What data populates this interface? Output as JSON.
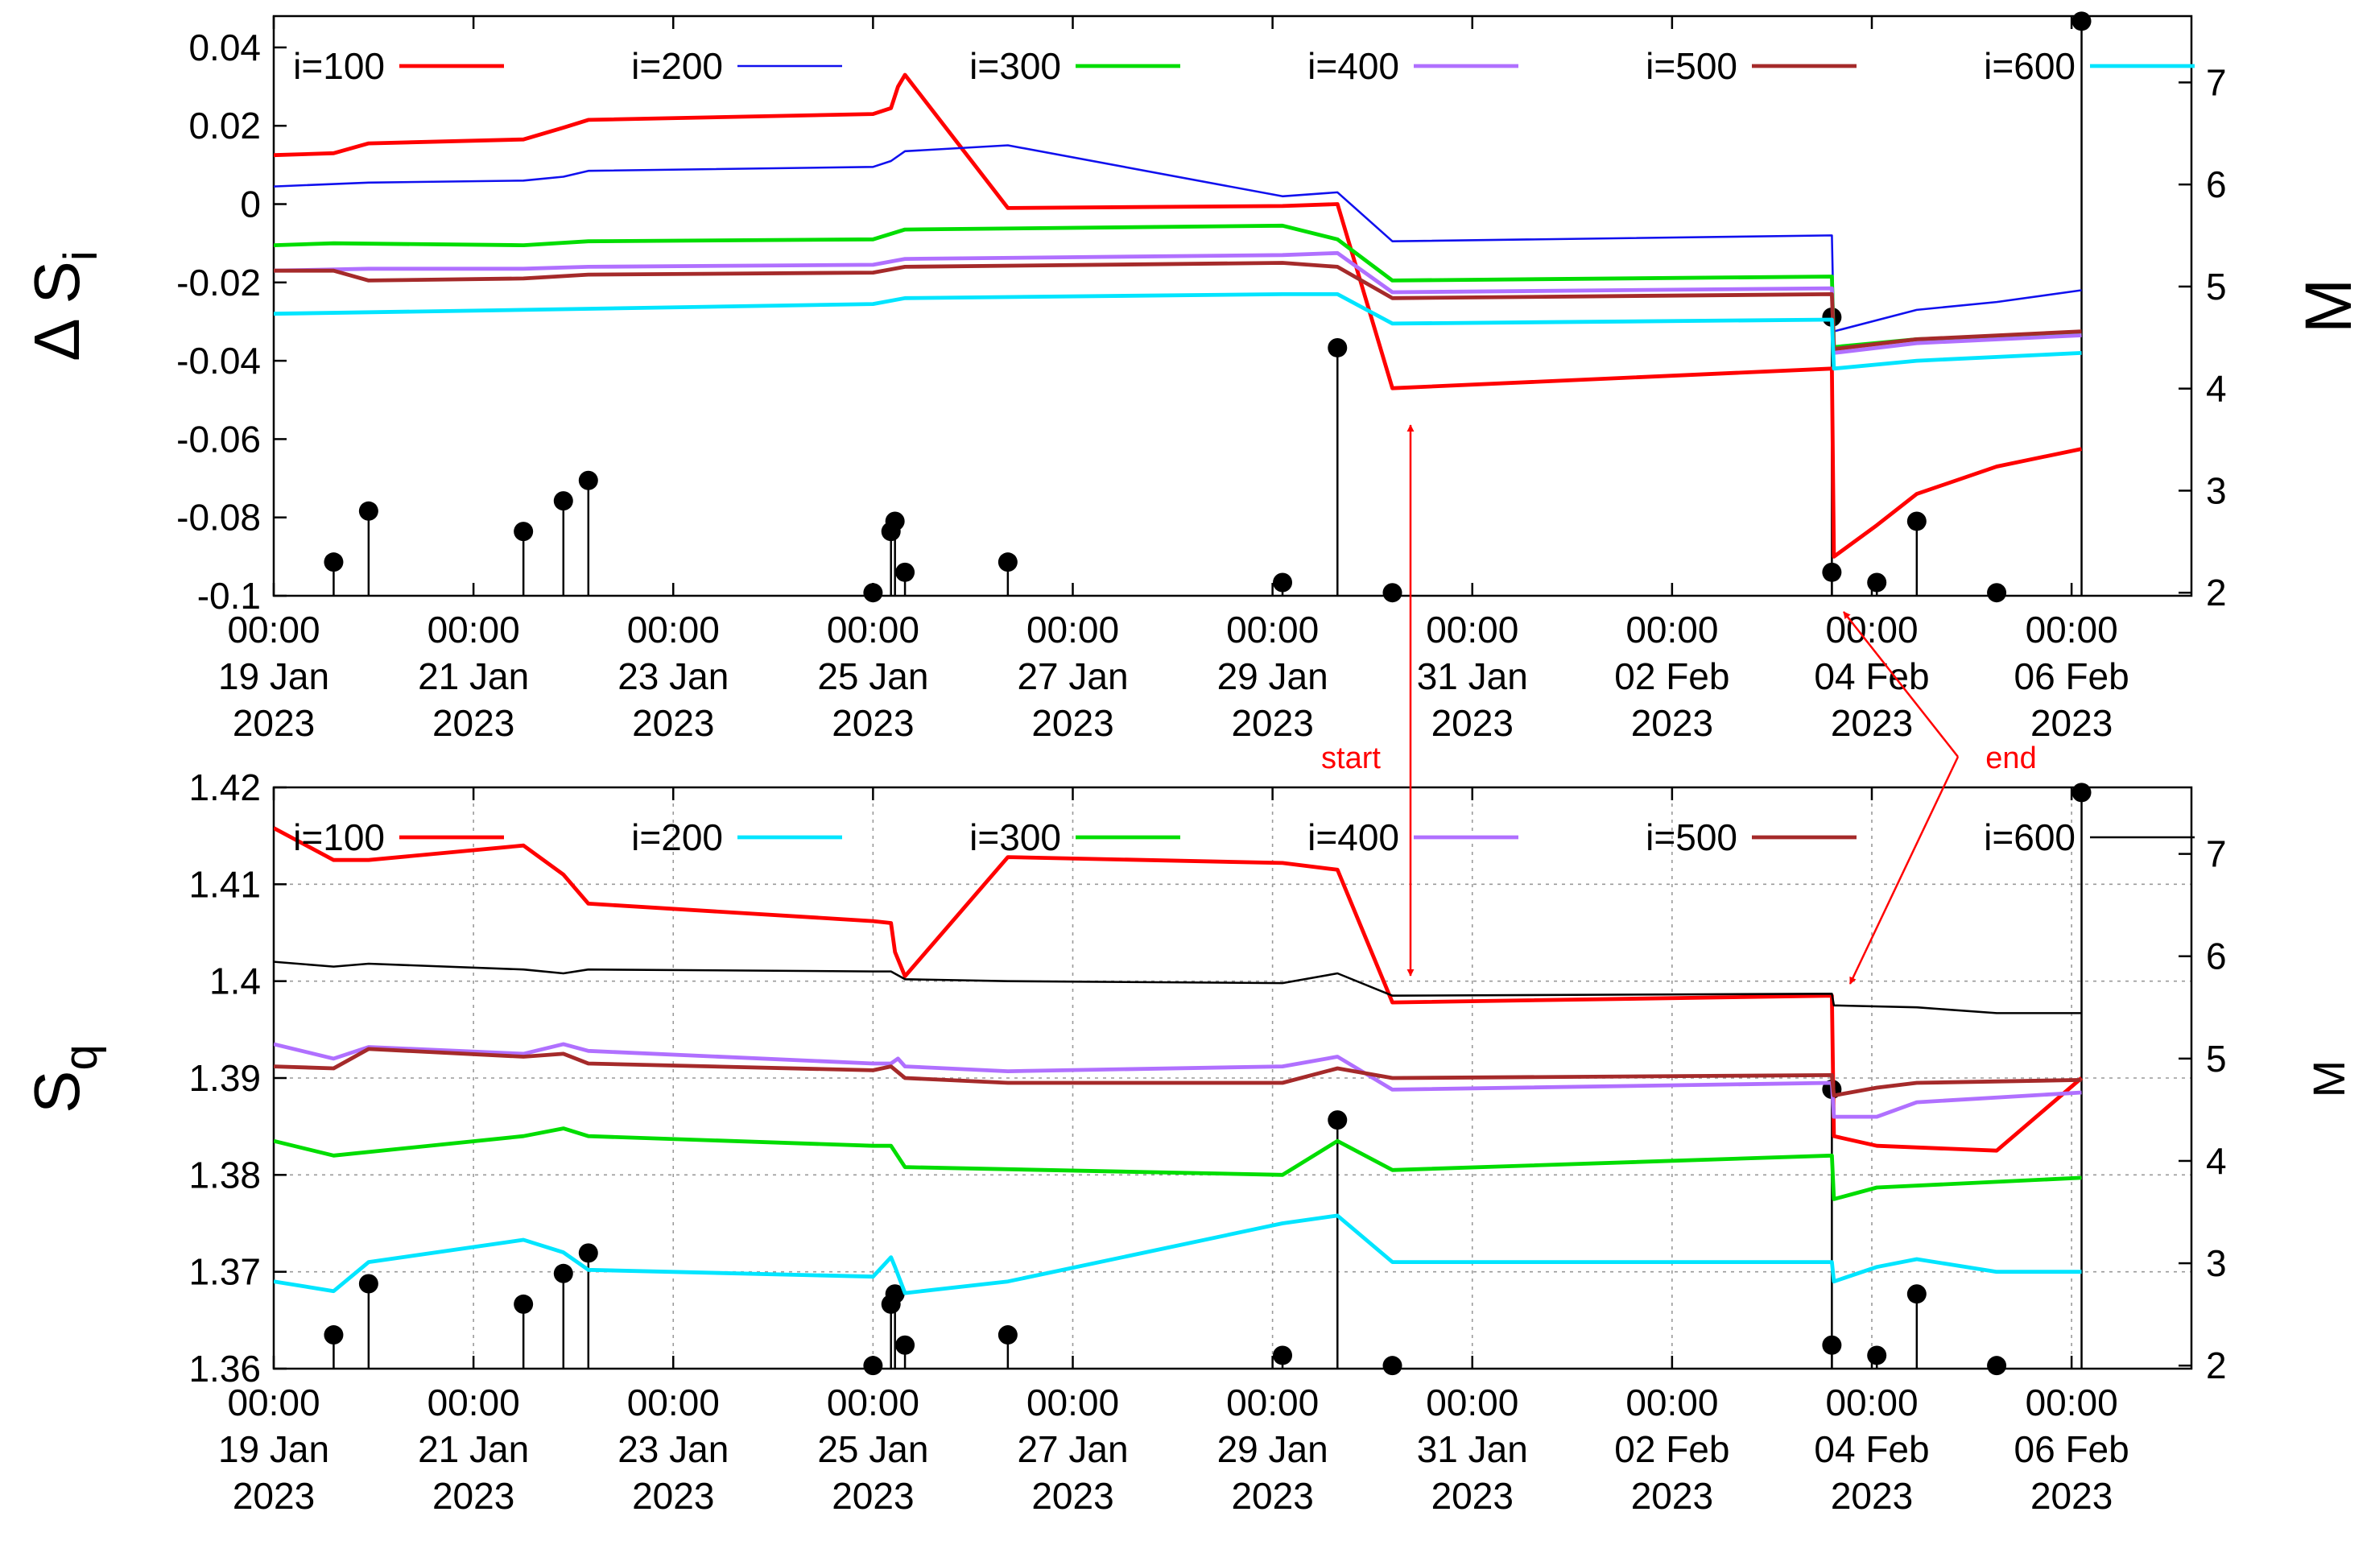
{
  "colors": {
    "red": "#ff0000",
    "blue": "#1010ee",
    "green": "#00dd00",
    "purple": "#b070ff",
    "brown": "#a52a2a",
    "cyan": "#00e5ff",
    "black": "#000000",
    "annotation": "#ff0000"
  },
  "x_ticks": [
    {
      "day": 0,
      "lines": [
        "00:00",
        "19 Jan",
        "2023"
      ]
    },
    {
      "day": 2,
      "lines": [
        "00:00",
        "21 Jan",
        "2023"
      ]
    },
    {
      "day": 4,
      "lines": [
        "00:00",
        "23 Jan",
        "2023"
      ]
    },
    {
      "day": 6,
      "lines": [
        "00:00",
        "25 Jan",
        "2023"
      ]
    },
    {
      "day": 8,
      "lines": [
        "00:00",
        "27 Jan",
        "2023"
      ]
    },
    {
      "day": 10,
      "lines": [
        "00:00",
        "29 Jan",
        "2023"
      ]
    },
    {
      "day": 12,
      "lines": [
        "00:00",
        "31 Jan",
        "2023"
      ]
    },
    {
      "day": 14,
      "lines": [
        "00:00",
        "02 Feb",
        "2023"
      ]
    },
    {
      "day": 16,
      "lines": [
        "00:00",
        "04 Feb",
        "2023"
      ]
    },
    {
      "day": 18,
      "lines": [
        "00:00",
        "06 Feb",
        "2023"
      ]
    }
  ],
  "events": [
    {
      "day": 0.6,
      "M": 2.3
    },
    {
      "day": 0.95,
      "M": 2.8
    },
    {
      "day": 2.5,
      "M": 2.6
    },
    {
      "day": 2.9,
      "M": 2.9
    },
    {
      "day": 3.15,
      "M": 3.1
    },
    {
      "day": 6.0,
      "M": 2.0
    },
    {
      "day": 6.18,
      "M": 2.6
    },
    {
      "day": 6.22,
      "M": 2.7
    },
    {
      "day": 6.32,
      "M": 2.2
    },
    {
      "day": 7.35,
      "M": 2.3
    },
    {
      "day": 10.1,
      "M": 2.1
    },
    {
      "day": 10.65,
      "M": 4.4
    },
    {
      "day": 11.2,
      "M": 2.0
    },
    {
      "day": 15.6,
      "M": 2.2
    },
    {
      "day": 15.6,
      "M": 4.7
    },
    {
      "day": 16.05,
      "M": 2.1
    },
    {
      "day": 16.45,
      "M": 2.7
    },
    {
      "day": 17.25,
      "M": 2.0
    },
    {
      "day": 18.1,
      "M": 7.6
    }
  ],
  "annotations": {
    "start": "start",
    "end": "end"
  },
  "chart_data": [
    {
      "type": "line",
      "panel": "top",
      "xlabel": "",
      "ylabel": "Δ S_i",
      "ylabel_main": "Δ S",
      "ylabel_sub": "i",
      "y2label": "M",
      "x_range_days": [
        0,
        19.2
      ],
      "ylim": [
        -0.1,
        0.048
      ],
      "y_ticks": [
        0.04,
        0.02,
        0,
        -0.02,
        -0.04,
        -0.06,
        -0.08,
        -0.1
      ],
      "y_tick_labels": [
        "0.04",
        "0.02",
        "0",
        "-0.02",
        "-0.04",
        "-0.06",
        "-0.08",
        "-0.1"
      ],
      "y2lim": [
        1.97,
        7.65
      ],
      "y2_ticks": [
        2,
        3,
        4,
        5,
        6,
        7
      ],
      "y2_tick_labels": [
        "2",
        "3",
        "4",
        "5",
        "6",
        "7"
      ],
      "grid": false,
      "legend_position": "top",
      "legend": [
        {
          "label": "i=100",
          "color": "red",
          "width": 3
        },
        {
          "label": "i=200",
          "color": "blue",
          "width": 1.6
        },
        {
          "label": "i=300",
          "color": "green",
          "width": 3
        },
        {
          "label": "i=400",
          "color": "purple",
          "width": 3
        },
        {
          "label": "i=500",
          "color": "brown",
          "width": 3
        },
        {
          "label": "i=600",
          "color": "cyan",
          "width": 3
        }
      ],
      "series": [
        {
          "name": "i=100",
          "color": "red",
          "width": 3,
          "x": [
            0,
            0.6,
            0.95,
            2.5,
            2.9,
            3.15,
            6.0,
            6.18,
            6.25,
            6.32,
            7.35,
            10.1,
            10.65,
            11.2,
            15.6,
            15.62,
            16.05,
            16.45,
            17.25,
            18.1
          ],
          "y": [
            0.0125,
            0.013,
            0.0155,
            0.0165,
            0.0195,
            0.0215,
            0.023,
            0.0245,
            0.03,
            0.033,
            -0.001,
            -0.0005,
            0.0,
            -0.047,
            -0.042,
            -0.09,
            -0.082,
            -0.074,
            -0.067,
            -0.0625
          ]
        },
        {
          "name": "i=200",
          "color": "blue",
          "width": 1.6,
          "x": [
            0,
            0.95,
            2.5,
            2.9,
            3.15,
            6.0,
            6.18,
            6.32,
            7.35,
            10.1,
            10.65,
            11.2,
            15.6,
            15.62,
            16.45,
            17.25,
            18.1
          ],
          "y": [
            0.0045,
            0.0055,
            0.006,
            0.007,
            0.0085,
            0.0095,
            0.011,
            0.0135,
            0.015,
            0.002,
            0.003,
            -0.0095,
            -0.008,
            -0.0325,
            -0.027,
            -0.025,
            -0.022
          ]
        },
        {
          "name": "i=300",
          "color": "green",
          "width": 3,
          "x": [
            0,
            0.6,
            2.5,
            3.15,
            6.0,
            6.32,
            10.1,
            10.65,
            11.2,
            15.6,
            15.62,
            16.45,
            18.1
          ],
          "y": [
            -0.0105,
            -0.01,
            -0.0105,
            -0.0095,
            -0.009,
            -0.0065,
            -0.0055,
            -0.009,
            -0.0195,
            -0.0185,
            -0.0365,
            -0.0345,
            -0.033
          ]
        },
        {
          "name": "i=400",
          "color": "purple",
          "width": 3,
          "x": [
            0,
            0.95,
            2.5,
            3.15,
            6.0,
            6.32,
            10.1,
            10.65,
            11.2,
            15.6,
            15.62,
            16.45,
            18.1
          ],
          "y": [
            -0.017,
            -0.0165,
            -0.0165,
            -0.016,
            -0.0155,
            -0.014,
            -0.013,
            -0.0125,
            -0.0225,
            -0.0215,
            -0.038,
            -0.0355,
            -0.0335
          ]
        },
        {
          "name": "i=500",
          "color": "brown",
          "width": 3,
          "x": [
            0,
            0.6,
            0.95,
            2.5,
            3.15,
            6.0,
            6.32,
            10.1,
            10.65,
            11.2,
            15.6,
            15.62,
            16.45,
            18.1
          ],
          "y": [
            -0.017,
            -0.017,
            -0.0195,
            -0.019,
            -0.018,
            -0.0175,
            -0.016,
            -0.015,
            -0.016,
            -0.024,
            -0.023,
            -0.037,
            -0.0345,
            -0.0325
          ]
        },
        {
          "name": "i=600",
          "color": "cyan",
          "width": 3,
          "x": [
            0,
            2.5,
            6.0,
            6.32,
            10.1,
            10.65,
            11.2,
            15.6,
            15.62,
            16.45,
            18.1
          ],
          "y": [
            -0.028,
            -0.027,
            -0.0255,
            -0.024,
            -0.023,
            -0.023,
            -0.0305,
            -0.0295,
            -0.042,
            -0.04,
            -0.038
          ]
        }
      ]
    },
    {
      "type": "line",
      "panel": "bottom",
      "xlabel": "",
      "ylabel": "S_q",
      "ylabel_main": "S",
      "ylabel_sub": "q",
      "y2label": "M",
      "x_range_days": [
        0,
        19.2
      ],
      "ylim": [
        1.36,
        1.42
      ],
      "y_ticks": [
        1.42,
        1.41,
        1.4,
        1.39,
        1.38,
        1.37,
        1.36
      ],
      "y_tick_labels": [
        "1.42",
        "1.41",
        "1.4",
        "1.39",
        "1.38",
        "1.37",
        "1.36"
      ],
      "y2lim": [
        1.97,
        7.65
      ],
      "y2_ticks": [
        2,
        3,
        4,
        5,
        6,
        7
      ],
      "y2_tick_labels": [
        "2",
        "3",
        "4",
        "5",
        "6",
        "7"
      ],
      "grid": true,
      "legend_position": "top",
      "legend": [
        {
          "label": "i=100",
          "color": "red",
          "width": 3
        },
        {
          "label": "i=200",
          "color": "cyan",
          "width": 3
        },
        {
          "label": "i=300",
          "color": "green",
          "width": 3
        },
        {
          "label": "i=400",
          "color": "purple",
          "width": 3
        },
        {
          "label": "i=500",
          "color": "brown",
          "width": 3
        },
        {
          "label": "i=600",
          "color": "black",
          "width": 1.6
        }
      ],
      "series": [
        {
          "name": "i=100",
          "color": "red",
          "width": 3,
          "x": [
            0,
            0.6,
            0.95,
            2.5,
            2.9,
            3.15,
            6.0,
            6.18,
            6.22,
            6.32,
            7.35,
            10.1,
            10.65,
            11.2,
            15.6,
            15.62,
            16.05,
            17.25,
            18.1
          ],
          "y": [
            1.4158,
            1.4125,
            1.4125,
            1.414,
            1.411,
            1.408,
            1.4062,
            1.406,
            1.403,
            1.4005,
            1.4128,
            1.4122,
            1.4115,
            1.3978,
            1.3985,
            1.384,
            1.383,
            1.3825,
            1.39
          ]
        },
        {
          "name": "i=200",
          "color": "cyan",
          "width": 3,
          "x": [
            0,
            0.6,
            0.95,
            2.5,
            2.9,
            3.15,
            6.0,
            6.18,
            6.22,
            6.32,
            7.35,
            10.1,
            10.65,
            11.2,
            15.6,
            15.62,
            16.05,
            16.45,
            17.25,
            18.1
          ],
          "y": [
            1.369,
            1.368,
            1.371,
            1.3733,
            1.372,
            1.3702,
            1.3695,
            1.3715,
            1.3705,
            1.3678,
            1.369,
            1.375,
            1.3758,
            1.371,
            1.371,
            1.369,
            1.3705,
            1.3713,
            1.37,
            1.37
          ]
        },
        {
          "name": "i=300",
          "color": "green",
          "width": 3,
          "x": [
            0,
            0.6,
            2.5,
            2.9,
            3.15,
            6.0,
            6.18,
            6.32,
            10.1,
            10.65,
            11.2,
            15.6,
            15.62,
            16.05,
            18.1
          ],
          "y": [
            1.3835,
            1.382,
            1.384,
            1.3848,
            1.384,
            1.383,
            1.383,
            1.3808,
            1.38,
            1.3835,
            1.3805,
            1.382,
            1.3775,
            1.3787,
            1.3797
          ]
        },
        {
          "name": "i=400",
          "color": "purple",
          "width": 3,
          "x": [
            0,
            0.6,
            0.95,
            2.5,
            2.9,
            3.15,
            6.0,
            6.18,
            6.25,
            6.32,
            7.35,
            10.1,
            10.65,
            11.2,
            15.6,
            15.62,
            16.05,
            16.45,
            18.1
          ],
          "y": [
            1.3935,
            1.392,
            1.3932,
            1.3925,
            1.3935,
            1.3928,
            1.3915,
            1.3915,
            1.392,
            1.3912,
            1.3907,
            1.3912,
            1.3922,
            1.3888,
            1.3895,
            1.386,
            1.386,
            1.3875,
            1.3885
          ]
        },
        {
          "name": "i=500",
          "color": "brown",
          "width": 3,
          "x": [
            0,
            0.6,
            0.95,
            2.5,
            2.9,
            3.15,
            6.0,
            6.18,
            6.32,
            7.35,
            10.1,
            10.65,
            11.2,
            15.6,
            15.62,
            16.05,
            16.45,
            18.1
          ],
          "y": [
            1.3912,
            1.391,
            1.393,
            1.3922,
            1.3925,
            1.3915,
            1.3908,
            1.3912,
            1.39,
            1.3895,
            1.3895,
            1.391,
            1.39,
            1.3903,
            1.3882,
            1.389,
            1.3895,
            1.3898
          ]
        },
        {
          "name": "i=600",
          "color": "black",
          "width": 1.6,
          "x": [
            0,
            0.6,
            0.95,
            2.5,
            2.9,
            3.15,
            6.0,
            6.18,
            6.32,
            7.35,
            10.1,
            10.65,
            11.2,
            15.6,
            15.62,
            16.45,
            17.25,
            18.1
          ],
          "y": [
            1.402,
            1.4015,
            1.4018,
            1.4012,
            1.4008,
            1.4012,
            1.401,
            1.401,
            1.4002,
            1.4,
            1.3998,
            1.4008,
            1.3985,
            1.3987,
            1.3975,
            1.3973,
            1.3967,
            1.3967
          ]
        }
      ]
    }
  ]
}
